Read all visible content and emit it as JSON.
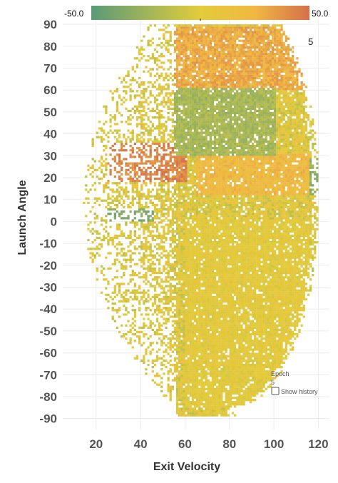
{
  "chart_data": {
    "type": "heatmap",
    "xlabel": "Exit Velocity",
    "ylabel": "Launch Angle",
    "xlim": [
      5,
      125
    ],
    "ylim": [
      -95,
      92
    ],
    "x_ticks": [
      20,
      40,
      60,
      80,
      100,
      120
    ],
    "y_ticks": [
      90,
      80,
      70,
      60,
      50,
      40,
      30,
      20,
      10,
      0,
      -10,
      -20,
      -30,
      -40,
      -50,
      -60,
      -70,
      -80,
      -90
    ],
    "x_tick_labels": [
      "20",
      "40",
      "60",
      "80",
      "100",
      "120"
    ],
    "y_tick_labels": [
      "90",
      "80",
      "70",
      "60",
      "50",
      "40",
      "30",
      "20",
      "10",
      "0",
      "-10",
      "-20",
      "-30",
      "-40",
      "-50",
      "-60",
      "-70",
      "-80",
      "-90"
    ],
    "grid": true,
    "bin_size": {
      "x": 1,
      "y": 1
    },
    "color_scale": {
      "min": -50.0,
      "max": 50.0,
      "min_label": "-50.0",
      "max_label": "50.0",
      "colors": [
        "#5a9a78",
        "#9fb45a",
        "#e3cc3a",
        "#f0b843",
        "#d4704a"
      ],
      "placement": "top"
    },
    "regions": [
      {
        "x_range": [
          55,
          100
        ],
        "y_range": [
          30,
          60
        ],
        "value": -22
      },
      {
        "x_range": [
          55,
          115
        ],
        "y_range": [
          60,
          88
        ],
        "value": 30
      },
      {
        "x_range": [
          25,
          60
        ],
        "y_range": [
          18,
          35
        ],
        "value": 42
      },
      {
        "x_range": [
          65,
          115
        ],
        "y_range": [
          12,
          30
        ],
        "value": 22
      },
      {
        "x_range": [
          100,
          120
        ],
        "y_range": [
          12,
          28
        ],
        "value": -30
      },
      {
        "x_range": [
          25,
          45
        ],
        "y_range": [
          0,
          5
        ],
        "value": -35
      },
      {
        "x_range": [
          60,
          115
        ],
        "y_range": [
          -85,
          0
        ],
        "value": 2
      }
    ]
  },
  "annotation": {
    "value": "5"
  },
  "playback": {
    "title": "Epoch",
    "value": "5",
    "show_history_label": "Show history",
    "show_history_checked": false
  }
}
